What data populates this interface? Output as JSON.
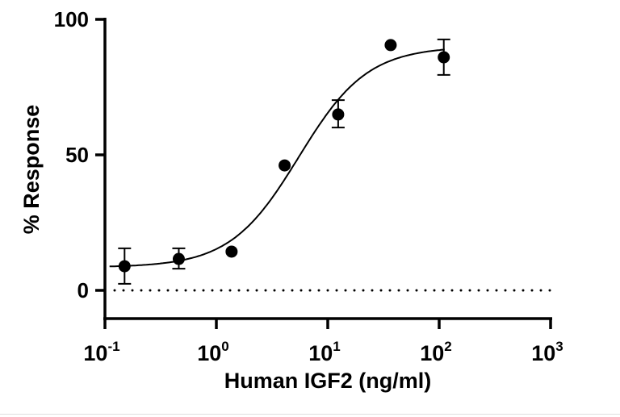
{
  "chart_data": {
    "type": "scatter",
    "title": "",
    "xlabel": "Human IGF2 (ng/ml)",
    "ylabel": "% Response",
    "x_scale": "log",
    "xlim": [
      0.1,
      1000
    ],
    "ylim": [
      0,
      100
    ],
    "x_ticks": [
      {
        "base": "10",
        "exp": "-1",
        "value": 0.1
      },
      {
        "base": "10",
        "exp": "0",
        "value": 1
      },
      {
        "base": "10",
        "exp": "1",
        "value": 10
      },
      {
        "base": "10",
        "exp": "2",
        "value": 100
      },
      {
        "base": "10",
        "exp": "3",
        "value": 1000
      }
    ],
    "y_ticks": [
      {
        "label": "0",
        "value": 0
      },
      {
        "label": "50",
        "value": 50
      },
      {
        "label": "100",
        "value": 100
      }
    ],
    "grid": false,
    "reference_line": {
      "y": 0,
      "style": "dotted"
    },
    "points": [
      {
        "x": 0.15,
        "y": 8.9,
        "err_low": 2.4,
        "err_high": 15.5
      },
      {
        "x": 0.46,
        "y": 11.6,
        "err_low": 8.0,
        "err_high": 15.5
      },
      {
        "x": 1.37,
        "y": 14.3
      },
      {
        "x": 4.1,
        "y": 46.1
      },
      {
        "x": 12.4,
        "y": 64.9,
        "err_low": 60.1,
        "err_high": 70.2
      },
      {
        "x": 36.7,
        "y": 90.5
      },
      {
        "x": 110,
        "y": 86.0,
        "err_low": 79.5,
        "err_high": 92.6
      }
    ],
    "fit_curve": {
      "model": "4PL",
      "bottom": 8.5,
      "top": 90,
      "ec50": 5.5,
      "hill": 1.41,
      "x_range": [
        0.11,
        112
      ]
    },
    "colors": {
      "marks": "#000000",
      "background": "#ffffff"
    }
  }
}
